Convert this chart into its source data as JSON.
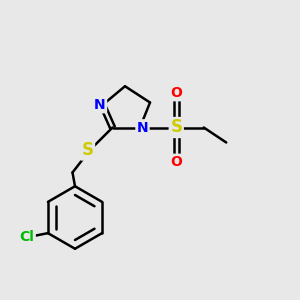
{
  "background_color": "#e8e8e8",
  "bond_color": "#000000",
  "N_color": "#0000ff",
  "S_color": "#cccc00",
  "O_color": "#ff0000",
  "Cl_color": "#00bb00",
  "font_size": 10,
  "line_width": 1.8,
  "figsize": [
    3.0,
    3.0
  ],
  "dpi": 100,
  "xlim": [
    0,
    12
  ],
  "ylim": [
    0,
    12
  ]
}
